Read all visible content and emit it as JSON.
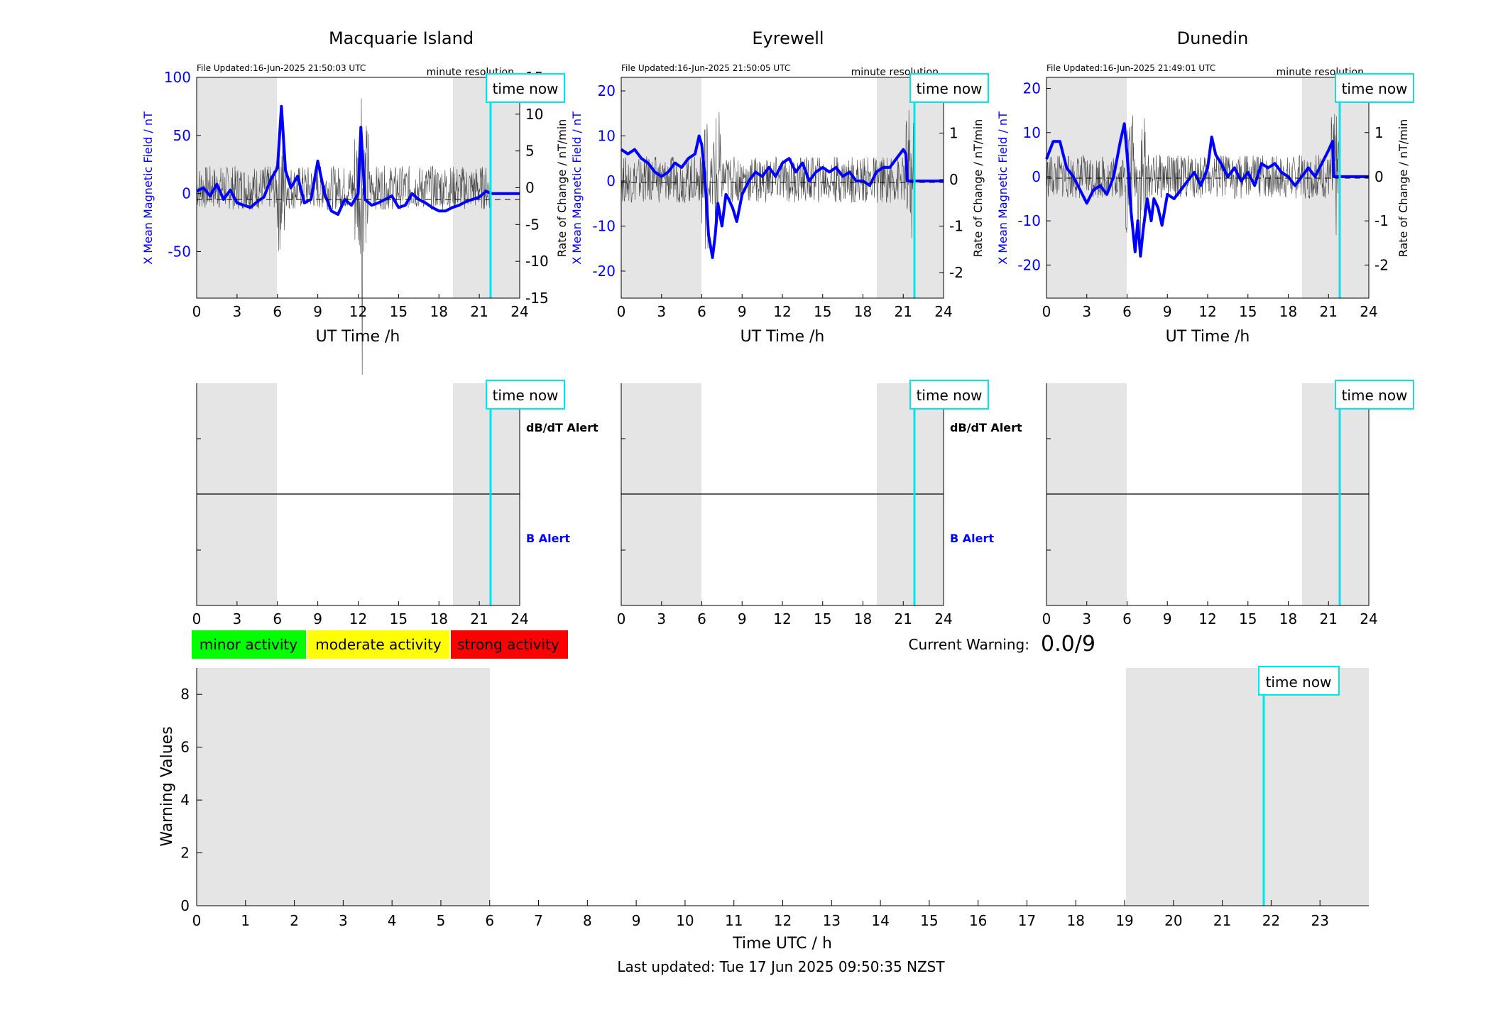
{
  "colors": {
    "x_series": "#0000ff",
    "rate_series": "#444444",
    "night_shade": "#e5e5e5",
    "time_now": "#00e5ee",
    "minor": "#00ff00",
    "moderate": "#ffff00",
    "strong": "#ff0000",
    "b_alert": "#0000ff",
    "dbdt_alert": "#000000"
  },
  "icons": {
    "legend_swatch": "colored-box"
  },
  "stations": [
    {
      "name": "Macquarie Island",
      "file_updated": "File Updated:16-Jun-2025 21:50:03 UTC"
    },
    {
      "name": "Eyrewell",
      "file_updated": "File Updated:16-Jun-2025 21:50:05 UTC"
    },
    {
      "name": "Dunedin",
      "file_updated": "File Updated:16-Jun-2025 21:49:01 UTC"
    }
  ],
  "labels": {
    "resolution": "minute resolution",
    "time_now": "time now",
    "top_xlabel": "UT Time /h",
    "ylabel_left": "X Mean Magnetic Field / nT",
    "ylabel_right": "Rate of Change / nT/min",
    "dbdt_alert": "dB/dT Alert",
    "b_alert": "B Alert",
    "current_warning_label": "Current Warning:",
    "current_warning_value": "0.0/9",
    "legend": [
      "minor activity",
      "moderate activity",
      "strong activity"
    ],
    "bottom_ylabel": "Warning Values",
    "bottom_xlabel": "Time UTC / h",
    "last_updated": "Last updated: Tue 17 Jun 2025 09:50:35 NZST"
  },
  "chart_data": [
    {
      "type": "line",
      "station": "Macquarie Island",
      "x_unit": "UT hour",
      "xlim": [
        0,
        24
      ],
      "xticks": [
        0,
        3,
        6,
        9,
        12,
        15,
        18,
        21,
        24
      ],
      "ylim_left": [
        -90,
        100
      ],
      "yticks_left": [
        -50,
        0,
        50,
        100
      ],
      "ylim_right": [
        -15,
        15
      ],
      "yticks_right": [
        -15,
        -10,
        -5,
        0,
        5,
        10,
        15
      ],
      "shaded_intervals": [
        [
          0,
          6
        ],
        [
          19,
          24
        ]
      ],
      "time_now": 21.83,
      "series": [
        {
          "name": "X Mean Magnetic Field / nT",
          "axis": "left",
          "points": [
            [
              0,
              2
            ],
            [
              0.5,
              5
            ],
            [
              1,
              -2
            ],
            [
              1.5,
              8
            ],
            [
              2,
              -5
            ],
            [
              2.5,
              3
            ],
            [
              3,
              -8
            ],
            [
              3.5,
              -10
            ],
            [
              4,
              -12
            ],
            [
              4.5,
              -7
            ],
            [
              5,
              -3
            ],
            [
              5.5,
              12
            ],
            [
              6,
              22
            ],
            [
              6.3,
              75
            ],
            [
              6.6,
              20
            ],
            [
              7,
              5
            ],
            [
              7.5,
              15
            ],
            [
              8,
              -8
            ],
            [
              8.5,
              -5
            ],
            [
              9,
              28
            ],
            [
              9.5,
              0
            ],
            [
              10,
              -15
            ],
            [
              10.5,
              -18
            ],
            [
              11,
              -5
            ],
            [
              11.5,
              -10
            ],
            [
              12,
              0
            ],
            [
              12.2,
              57
            ],
            [
              12.5,
              -5
            ],
            [
              13,
              -10
            ],
            [
              13.5,
              -8
            ],
            [
              14,
              -5
            ],
            [
              14.5,
              -2
            ],
            [
              15,
              -12
            ],
            [
              15.5,
              -10
            ],
            [
              16,
              0
            ],
            [
              16.5,
              -5
            ],
            [
              17,
              -8
            ],
            [
              17.5,
              -12
            ],
            [
              18,
              -15
            ],
            [
              18.5,
              -15
            ],
            [
              19,
              -12
            ],
            [
              19.5,
              -10
            ],
            [
              20,
              -7
            ],
            [
              20.5,
              -5
            ],
            [
              21,
              -3
            ],
            [
              21.5,
              2
            ],
            [
              21.9,
              0
            ],
            [
              24,
              0
            ]
          ]
        },
        {
          "name": "Rate of Change / nT/min",
          "axis": "right",
          "noise_amplitude": 3,
          "spike_hours": [
            6.3,
            12,
            12.5
          ]
        }
      ]
    },
    {
      "type": "line",
      "station": "Eyrewell",
      "x_unit": "UT hour",
      "xlim": [
        0,
        24
      ],
      "xticks": [
        0,
        3,
        6,
        9,
        12,
        15,
        18,
        21,
        24
      ],
      "ylim_left": [
        -26,
        23
      ],
      "yticks_left": [
        -20,
        -10,
        0,
        10,
        20
      ],
      "ylim_right": [
        -2.55,
        2.2
      ],
      "yticks_right": [
        -2,
        -1,
        0,
        1,
        2
      ],
      "shaded_intervals": [
        [
          0,
          6
        ],
        [
          19,
          24
        ]
      ],
      "time_now": 21.83,
      "series": [
        {
          "name": "X Mean Magnetic Field / nT",
          "axis": "left",
          "points": [
            [
              0,
              7
            ],
            [
              0.5,
              6
            ],
            [
              1,
              7
            ],
            [
              1.5,
              5
            ],
            [
              2,
              4
            ],
            [
              2.5,
              2
            ],
            [
              3,
              1
            ],
            [
              3.5,
              2
            ],
            [
              4,
              4
            ],
            [
              4.5,
              3
            ],
            [
              5,
              5
            ],
            [
              5.5,
              6
            ],
            [
              5.8,
              10
            ],
            [
              6,
              8
            ],
            [
              6.2,
              2
            ],
            [
              6.5,
              -12
            ],
            [
              6.8,
              -17
            ],
            [
              7,
              -12
            ],
            [
              7.2,
              -5
            ],
            [
              7.5,
              -10
            ],
            [
              7.8,
              -3
            ],
            [
              8,
              -4
            ],
            [
              8.3,
              -6
            ],
            [
              8.6,
              -9
            ],
            [
              9,
              -3
            ],
            [
              9.5,
              0
            ],
            [
              10,
              2
            ],
            [
              10.5,
              1
            ],
            [
              11,
              3
            ],
            [
              11.5,
              1
            ],
            [
              12,
              4
            ],
            [
              12.5,
              5
            ],
            [
              13,
              2
            ],
            [
              13.5,
              4
            ],
            [
              14,
              0
            ],
            [
              14.5,
              2
            ],
            [
              15,
              3
            ],
            [
              15.5,
              2
            ],
            [
              16,
              3
            ],
            [
              16.5,
              1
            ],
            [
              17,
              2
            ],
            [
              17.5,
              0
            ],
            [
              18,
              0
            ],
            [
              18.5,
              -1
            ],
            [
              19,
              2
            ],
            [
              19.5,
              3
            ],
            [
              20,
              3
            ],
            [
              20.5,
              5
            ],
            [
              21,
              7
            ],
            [
              21.2,
              6
            ],
            [
              21.3,
              0
            ],
            [
              24,
              0
            ]
          ]
        },
        {
          "name": "Rate of Change / nT/min",
          "axis": "right",
          "noise_amplitude": 0.5,
          "spike_hours": [
            6.2,
            7.1,
            21.5
          ]
        }
      ]
    },
    {
      "type": "line",
      "station": "Dunedin",
      "x_unit": "UT hour",
      "xlim": [
        0,
        24
      ],
      "xticks": [
        0,
        3,
        6,
        9,
        12,
        15,
        18,
        21,
        24
      ],
      "ylim_left": [
        -27.5,
        22.5
      ],
      "yticks_left": [
        -20,
        -10,
        0,
        10,
        20
      ],
      "ylim_right": [
        -2.75,
        2.25
      ],
      "yticks_right": [
        -2,
        -1,
        0,
        1,
        2
      ],
      "shaded_intervals": [
        [
          0,
          6
        ],
        [
          19,
          24
        ]
      ],
      "time_now": 21.83,
      "series": [
        {
          "name": "X Mean Magnetic Field / nT",
          "axis": "left",
          "points": [
            [
              0,
              4
            ],
            [
              0.5,
              8
            ],
            [
              1,
              8
            ],
            [
              1.5,
              2
            ],
            [
              2,
              0
            ],
            [
              2.5,
              -3
            ],
            [
              3,
              -6
            ],
            [
              3.5,
              -3
            ],
            [
              4,
              -2
            ],
            [
              4.5,
              -4
            ],
            [
              5,
              0
            ],
            [
              5.5,
              8
            ],
            [
              5.8,
              12
            ],
            [
              6,
              5
            ],
            [
              6.3,
              -8
            ],
            [
              6.6,
              -17
            ],
            [
              6.8,
              -10
            ],
            [
              7,
              -18
            ],
            [
              7.2,
              -12
            ],
            [
              7.5,
              -5
            ],
            [
              7.8,
              -10
            ],
            [
              8,
              -5
            ],
            [
              8.3,
              -7
            ],
            [
              8.6,
              -11
            ],
            [
              9,
              -4
            ],
            [
              9.5,
              -5
            ],
            [
              10,
              -3
            ],
            [
              10.5,
              -1
            ],
            [
              11,
              1
            ],
            [
              11.5,
              -2
            ],
            [
              12,
              2
            ],
            [
              12.3,
              9
            ],
            [
              12.6,
              5
            ],
            [
              13,
              3
            ],
            [
              13.5,
              0
            ],
            [
              14,
              2
            ],
            [
              14.5,
              -1
            ],
            [
              15,
              1
            ],
            [
              15.5,
              -2
            ],
            [
              16,
              3
            ],
            [
              16.5,
              2
            ],
            [
              17,
              3
            ],
            [
              17.5,
              1
            ],
            [
              18,
              0
            ],
            [
              18.5,
              -2
            ],
            [
              19,
              0
            ],
            [
              19.5,
              2
            ],
            [
              20,
              0
            ],
            [
              20.5,
              3
            ],
            [
              21,
              6
            ],
            [
              21.3,
              8
            ],
            [
              21.4,
              0
            ],
            [
              24,
              0
            ]
          ]
        },
        {
          "name": "Rate of Change / nT/min",
          "axis": "right",
          "noise_amplitude": 0.5,
          "spike_hours": [
            6.2,
            7.1,
            21.5
          ]
        }
      ]
    },
    {
      "type": "bar",
      "title": "",
      "xlabel": "Time UTC / h",
      "ylabel": "Warning Values",
      "xlim": [
        0,
        24
      ],
      "xticks": [
        0,
        1,
        2,
        3,
        4,
        5,
        6,
        7,
        8,
        9,
        10,
        11,
        12,
        13,
        14,
        15,
        16,
        17,
        18,
        19,
        20,
        21,
        22,
        23
      ],
      "ylim": [
        0,
        9
      ],
      "yticks": [
        0,
        2,
        4,
        6,
        8
      ],
      "shaded_intervals": [
        [
          0,
          6
        ],
        [
          19,
          24
        ]
      ],
      "time_now": 21.83,
      "values": []
    }
  ]
}
